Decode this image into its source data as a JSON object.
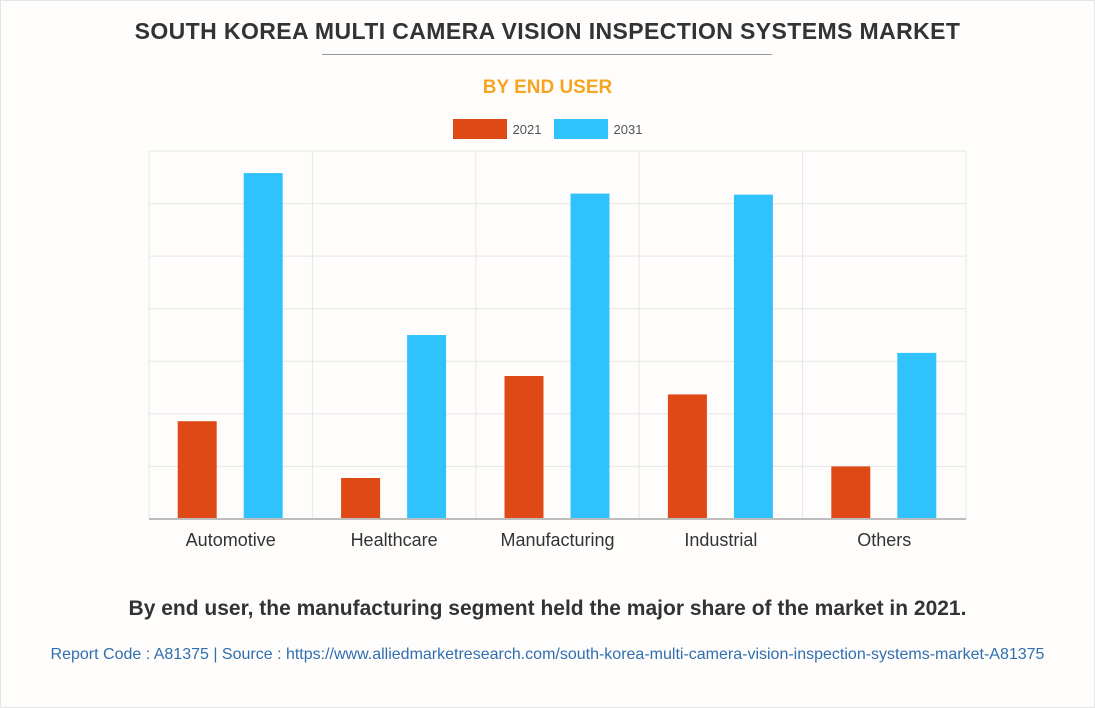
{
  "header": {
    "title": "SOUTH KOREA MULTI CAMERA VISION INSPECTION SYSTEMS MARKET",
    "subtitle": "BY END USER"
  },
  "colors": {
    "series_2021": "#df4916",
    "series_2031": "#30c2fd",
    "subtitle": "#f4a623",
    "grid": "#e6e6e6",
    "axis": "#bdbdbd"
  },
  "chart_data": {
    "type": "bar",
    "title": "SOUTH KOREA MULTI CAMERA VISION INSPECTION SYSTEMS MARKET",
    "subtitle": "BY END USER",
    "categories": [
      "Automotive",
      "Healthcare",
      "Manufacturing",
      "Industrial",
      "Others"
    ],
    "series": [
      {
        "name": "2021",
        "values": [
          1.86,
          0.78,
          2.72,
          2.37,
          1.0
        ]
      },
      {
        "name": "2031",
        "values": [
          6.58,
          3.5,
          6.19,
          6.17,
          3.16
        ]
      }
    ],
    "ylim": [
      0,
      7
    ],
    "grid": true,
    "xlabel": "",
    "ylabel": "",
    "legend_position": "top-center"
  },
  "footer": {
    "caption": "By end user, the manufacturing segment held the major share of the market in 2021.",
    "source": "Report Code : A81375  |  Source : https://www.alliedmarketresearch.com/south-korea-multi-camera-vision-inspection-systems-market-A81375"
  }
}
